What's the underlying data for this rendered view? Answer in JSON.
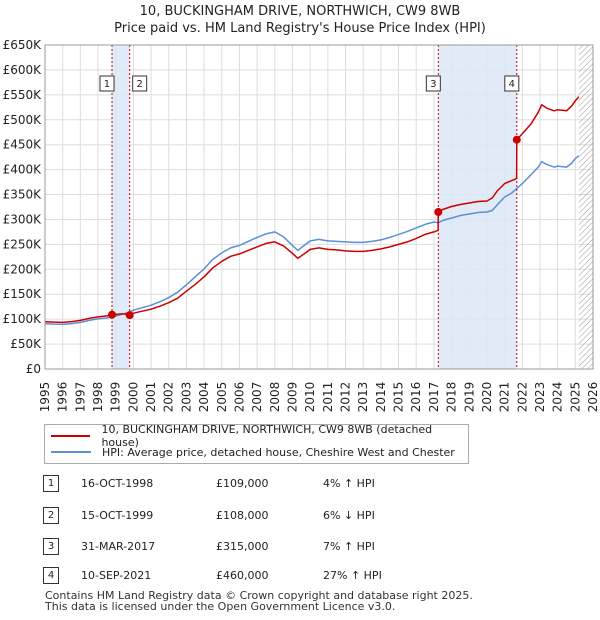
{
  "title_line1": "10, BUCKINGHAM DRIVE, NORTHWICH, CW9 8WB",
  "title_line2": "Price paid vs. HM Land Registry's House Price Index (HPI)",
  "chart_data": {
    "type": "line",
    "xlim": [
      1995,
      2026
    ],
    "ylim": [
      0,
      650000
    ],
    "y_ticks": [
      0,
      50000,
      100000,
      150000,
      200000,
      250000,
      300000,
      350000,
      400000,
      450000,
      500000,
      550000,
      600000,
      650000
    ],
    "y_tick_labels": [
      "£0",
      "£50K",
      "£100K",
      "£150K",
      "£200K",
      "£250K",
      "£300K",
      "£350K",
      "£400K",
      "£450K",
      "£500K",
      "£550K",
      "£600K",
      "£650K"
    ],
    "x_ticks": [
      1995,
      1996,
      1997,
      1998,
      1999,
      2000,
      2001,
      2002,
      2003,
      2004,
      2005,
      2006,
      2007,
      2008,
      2009,
      2010,
      2011,
      2012,
      2013,
      2014,
      2015,
      2016,
      2017,
      2018,
      2019,
      2020,
      2021,
      2022,
      2023,
      2024,
      2025,
      2026
    ],
    "series": [
      {
        "name": "10, BUCKINGHAM DRIVE, NORTHWICH, CW9 8WB (detached house)",
        "color": "#cc0000",
        "points": [
          [
            1995.0,
            95000
          ],
          [
            1995.5,
            94000
          ],
          [
            1996.0,
            93500
          ],
          [
            1996.5,
            95000
          ],
          [
            1997.0,
            97500
          ],
          [
            1997.5,
            101500
          ],
          [
            1998.0,
            104500
          ],
          [
            1998.5,
            106500
          ],
          [
            1998.79,
            109000
          ],
          [
            1999.0,
            109500
          ],
          [
            1999.4,
            111000
          ],
          [
            1999.79,
            108000
          ],
          [
            2000.0,
            112000
          ],
          [
            2000.5,
            116000
          ],
          [
            2001.0,
            120000
          ],
          [
            2001.5,
            126000
          ],
          [
            2002.0,
            133000
          ],
          [
            2002.5,
            142000
          ],
          [
            2003.0,
            156000
          ],
          [
            2003.5,
            170000
          ],
          [
            2004.0,
            185000
          ],
          [
            2004.5,
            203000
          ],
          [
            2005.0,
            216000
          ],
          [
            2005.5,
            226000
          ],
          [
            2006.0,
            231000
          ],
          [
            2006.5,
            238000
          ],
          [
            2007.0,
            245000
          ],
          [
            2007.5,
            252000
          ],
          [
            2008.0,
            255000
          ],
          [
            2008.5,
            247000
          ],
          [
            2009.0,
            232000
          ],
          [
            2009.3,
            222000
          ],
          [
            2009.7,
            232000
          ],
          [
            2010.0,
            240000
          ],
          [
            2010.5,
            243000
          ],
          [
            2011.0,
            240000
          ],
          [
            2011.5,
            239000
          ],
          [
            2012.0,
            237000
          ],
          [
            2012.5,
            236000
          ],
          [
            2013.0,
            236000
          ],
          [
            2013.5,
            238000
          ],
          [
            2014.0,
            241000
          ],
          [
            2014.5,
            245000
          ],
          [
            2015.0,
            250000
          ],
          [
            2015.5,
            255000
          ],
          [
            2016.0,
            262000
          ],
          [
            2016.5,
            270000
          ],
          [
            2017.0,
            275000
          ],
          [
            2017.24,
            278000
          ],
          [
            2017.25,
            315000
          ],
          [
            2017.5,
            320000
          ],
          [
            2018.0,
            326000
          ],
          [
            2018.5,
            330000
          ],
          [
            2019.0,
            333000
          ],
          [
            2019.5,
            336000
          ],
          [
            2020.0,
            337000
          ],
          [
            2020.3,
            343000
          ],
          [
            2020.6,
            358000
          ],
          [
            2021.0,
            372000
          ],
          [
            2021.4,
            378000
          ],
          [
            2021.68,
            382000
          ],
          [
            2021.69,
            460000
          ],
          [
            2022.0,
            472000
          ],
          [
            2022.5,
            492000
          ],
          [
            2022.9,
            515000
          ],
          [
            2023.1,
            530000
          ],
          [
            2023.4,
            523000
          ],
          [
            2023.8,
            518000
          ],
          [
            2024.0,
            520000
          ],
          [
            2024.5,
            518000
          ],
          [
            2024.8,
            528000
          ],
          [
            2025.0,
            538000
          ],
          [
            2025.2,
            546000
          ]
        ]
      },
      {
        "name": "HPI: Average price, detached house, Cheshire West and Chester",
        "color": "#5b8fd6",
        "points": [
          [
            1995.0,
            91000
          ],
          [
            1995.5,
            90000
          ],
          [
            1996.0,
            89500
          ],
          [
            1996.5,
            91000
          ],
          [
            1997.0,
            93500
          ],
          [
            1997.5,
            97500
          ],
          [
            1998.0,
            100500
          ],
          [
            1998.5,
            102500
          ],
          [
            1998.79,
            104500
          ],
          [
            1999.0,
            106000
          ],
          [
            1999.4,
            110000
          ],
          [
            1999.79,
            114500
          ],
          [
            2000.0,
            118000
          ],
          [
            2000.5,
            123000
          ],
          [
            2001.0,
            128000
          ],
          [
            2001.5,
            135000
          ],
          [
            2002.0,
            143000
          ],
          [
            2002.5,
            154000
          ],
          [
            2003.0,
            169000
          ],
          [
            2003.5,
            185000
          ],
          [
            2004.0,
            201000
          ],
          [
            2004.5,
            220000
          ],
          [
            2005.0,
            233000
          ],
          [
            2005.5,
            243000
          ],
          [
            2006.0,
            248000
          ],
          [
            2006.5,
            256000
          ],
          [
            2007.0,
            264000
          ],
          [
            2007.5,
            271000
          ],
          [
            2008.0,
            275000
          ],
          [
            2008.5,
            265000
          ],
          [
            2009.0,
            248000
          ],
          [
            2009.3,
            238000
          ],
          [
            2009.7,
            249000
          ],
          [
            2010.0,
            257000
          ],
          [
            2010.5,
            260000
          ],
          [
            2011.0,
            257000
          ],
          [
            2011.5,
            256000
          ],
          [
            2012.0,
            255000
          ],
          [
            2012.5,
            254000
          ],
          [
            2013.0,
            254000
          ],
          [
            2013.5,
            256000
          ],
          [
            2014.0,
            259000
          ],
          [
            2014.5,
            264000
          ],
          [
            2015.0,
            270000
          ],
          [
            2015.5,
            276000
          ],
          [
            2016.0,
            283000
          ],
          [
            2016.5,
            290000
          ],
          [
            2017.0,
            295000
          ],
          [
            2017.25,
            293500
          ],
          [
            2017.5,
            298000
          ],
          [
            2018.0,
            303000
          ],
          [
            2018.5,
            308000
          ],
          [
            2019.0,
            311000
          ],
          [
            2019.5,
            314000
          ],
          [
            2020.0,
            315000
          ],
          [
            2020.3,
            318000
          ],
          [
            2020.6,
            330000
          ],
          [
            2021.0,
            345000
          ],
          [
            2021.4,
            353000
          ],
          [
            2021.69,
            362000
          ],
          [
            2022.0,
            372000
          ],
          [
            2022.5,
            390000
          ],
          [
            2022.9,
            405000
          ],
          [
            2023.1,
            416000
          ],
          [
            2023.4,
            410000
          ],
          [
            2023.8,
            405000
          ],
          [
            2024.0,
            407000
          ],
          [
            2024.5,
            405000
          ],
          [
            2024.8,
            413000
          ],
          [
            2025.0,
            422000
          ],
          [
            2025.2,
            428000
          ]
        ]
      }
    ],
    "shaded_periods": [
      [
        1998.79,
        1999.79
      ],
      [
        2017.25,
        2021.69
      ]
    ],
    "hatched_after": 2025.2,
    "markers": [
      {
        "label": "1",
        "x": 1998.79,
        "y": 109000
      },
      {
        "label": "2",
        "x": 1999.79,
        "y": 108000
      },
      {
        "label": "3",
        "x": 2017.25,
        "y": 315000
      },
      {
        "label": "4",
        "x": 2021.69,
        "y": 460000
      }
    ]
  },
  "legend": {
    "property_label": "10, BUCKINGHAM DRIVE, NORTHWICH, CW9 8WB (detached house)",
    "hpi_label": "HPI: Average price, detached house, Cheshire West and Chester",
    "property_color": "#cc0000",
    "hpi_color": "#5b8fd6"
  },
  "sales": [
    {
      "num": "1",
      "date": "16-OCT-1998",
      "price": "£109,000",
      "hpi": "4% ↑ HPI"
    },
    {
      "num": "2",
      "date": "15-OCT-1999",
      "price": "£108,000",
      "hpi": "6% ↓ HPI"
    },
    {
      "num": "3",
      "date": "31-MAR-2017",
      "price": "£315,000",
      "hpi": "7% ↑ HPI"
    },
    {
      "num": "4",
      "date": "10-SEP-2021",
      "price": "£460,000",
      "hpi": "27% ↑ HPI"
    }
  ],
  "footer_line1": "Contains HM Land Registry data © Crown copyright and database right 2025.",
  "footer_line2": "This data is licensed under the Open Government Licence v3.0."
}
